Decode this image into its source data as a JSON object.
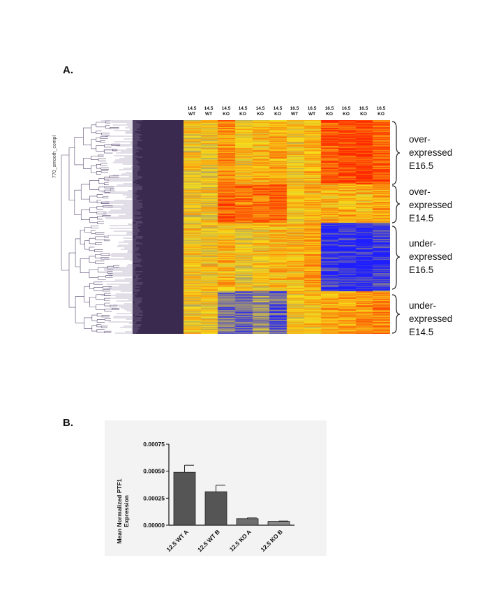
{
  "panels": {
    "a_label": "A.",
    "b_label": "B."
  },
  "heatmap": {
    "dendrogram_label": "770_smooth_compl",
    "columns": [
      {
        "stage": "14.5",
        "genotype": "WT"
      },
      {
        "stage": "14.5",
        "genotype": "WT"
      },
      {
        "stage": "14.5",
        "genotype": "KO"
      },
      {
        "stage": "14.5",
        "genotype": "KO"
      },
      {
        "stage": "14.5",
        "genotype": "KO"
      },
      {
        "stage": "14.5",
        "genotype": "KO"
      },
      {
        "stage": "16.5",
        "genotype": "WT"
      },
      {
        "stage": "16.5",
        "genotype": "WT"
      },
      {
        "stage": "16.5",
        "genotype": "KO"
      },
      {
        "stage": "16.5",
        "genotype": "KO"
      },
      {
        "stage": "16.5",
        "genotype": "KO"
      },
      {
        "stage": "16.5",
        "genotype": "KO"
      }
    ],
    "groups": [
      {
        "line1": "over-",
        "line2": "expressed",
        "line3": "E16.5"
      },
      {
        "line1": "over-",
        "line2": "expressed",
        "line3": "E14.5"
      },
      {
        "line1": "under-",
        "line2": "expressed",
        "line3": "E16.5"
      },
      {
        "line1": "under-",
        "line2": "expressed",
        "line3": "E14.5"
      }
    ],
    "colors": {
      "low": "#1f1fff",
      "mid": "#f7e21b",
      "high": "#ff2a00",
      "dendrogram_bg": "#3b2a4f"
    }
  },
  "chart_data": {
    "type": "bar",
    "title": "",
    "xlabel": "",
    "ylabel": "Mean Normalized PTF1 Expression",
    "ylabel_line1": "Mean Normalized PTF1",
    "ylabel_line2": "Expression",
    "categories": [
      "12.5 WT A",
      "12.5 WT B",
      "12.5 KO A",
      "12.5 KO B"
    ],
    "values": [
      0.00049,
      0.00031,
      6e-05,
      3.5e-05
    ],
    "errors": [
      6.5e-05,
      6e-05,
      8e-06,
      3e-06
    ],
    "bar_colors": [
      "#555555",
      "#555555",
      "#6e6e6e",
      "#888888"
    ],
    "ylim": [
      0,
      0.00075
    ],
    "yticks": [
      0,
      0.00025,
      0.0005,
      0.00075
    ],
    "ytick_labels": [
      "0.00000",
      "0.00025",
      "0.00050",
      "0.00075"
    ]
  }
}
